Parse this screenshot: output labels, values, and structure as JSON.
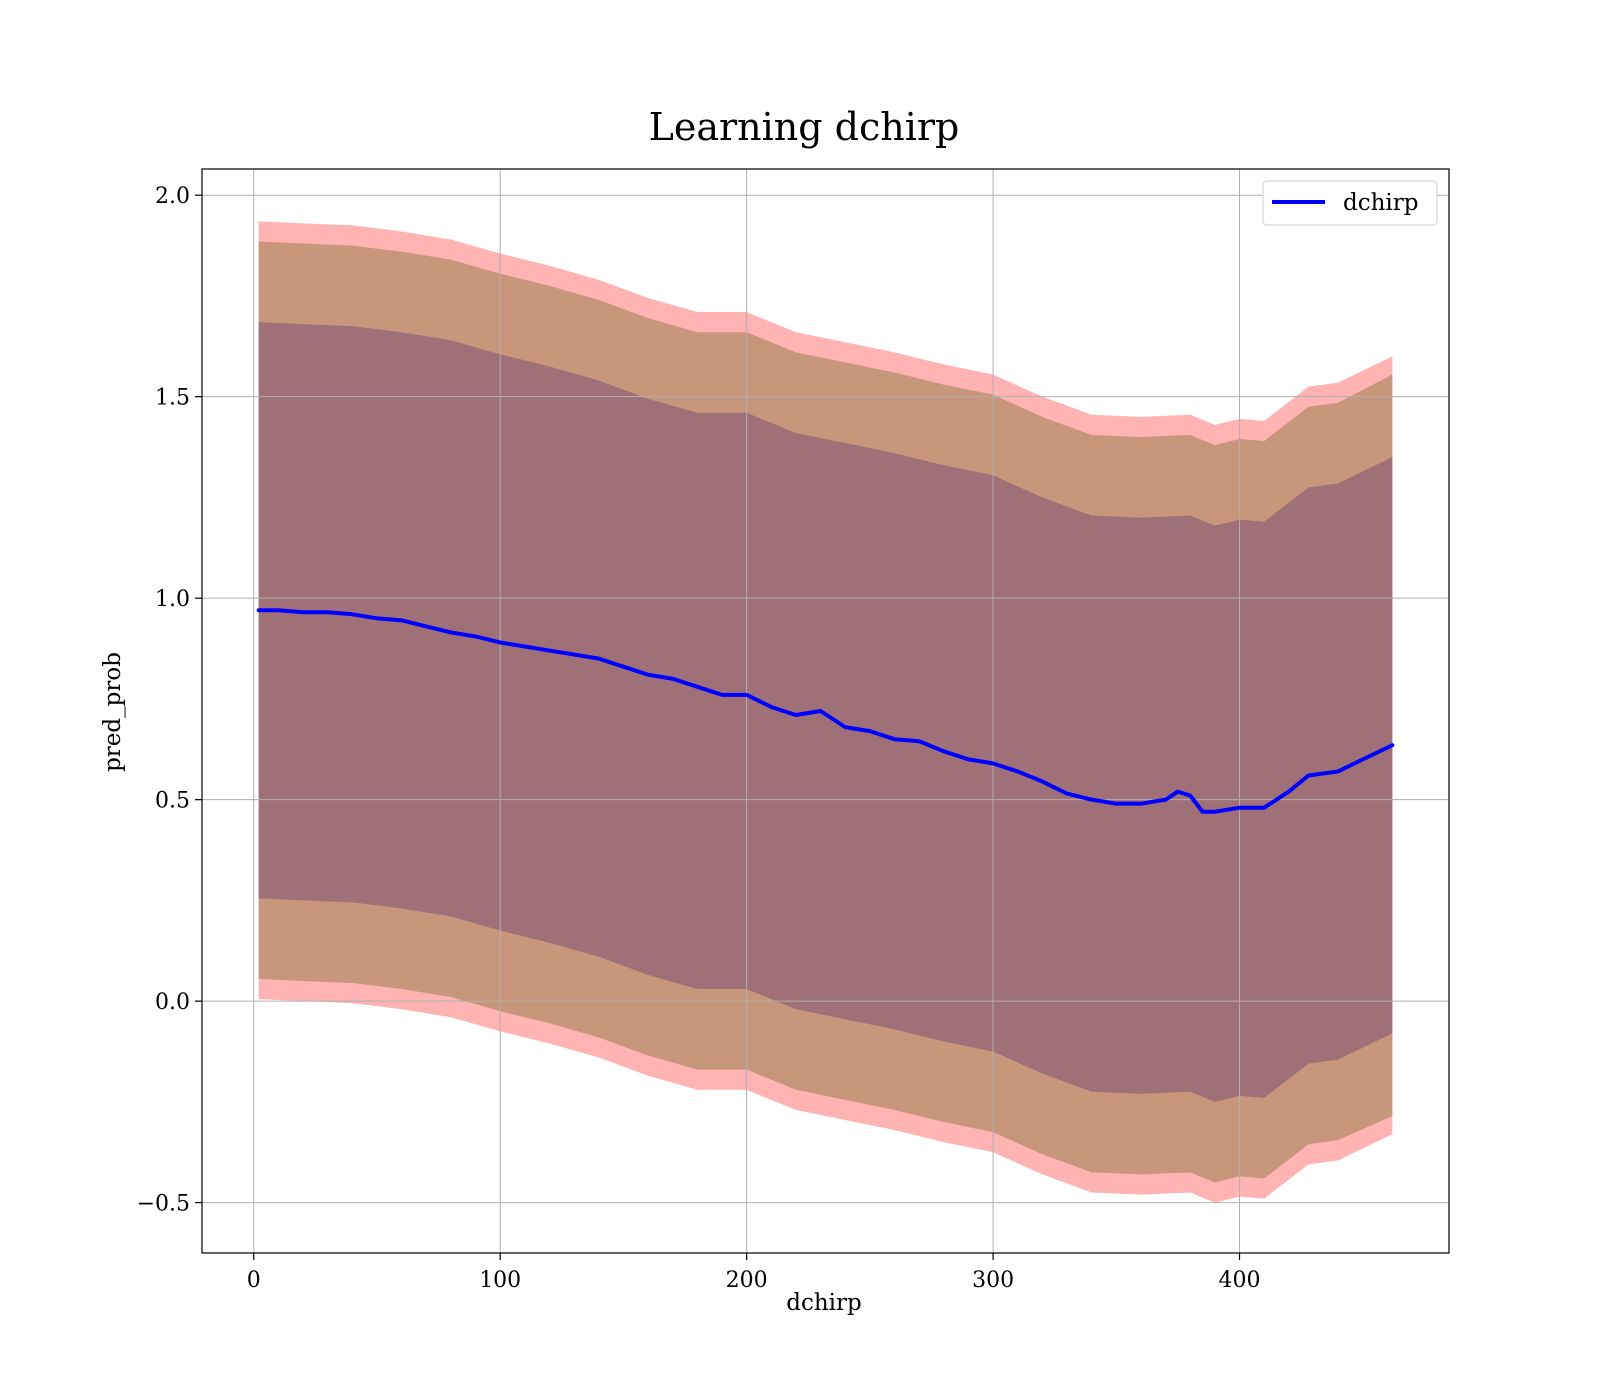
{
  "chart_data": {
    "type": "line",
    "title": "Learning dchirp",
    "xlabel": "dchirp",
    "ylabel": "pred_prob",
    "xlim": [
      -21,
      485
    ],
    "ylim": [
      -0.625,
      2.065
    ],
    "x_ticks": [
      0,
      100,
      200,
      300,
      400
    ],
    "y_ticks": [
      -0.5,
      0.0,
      0.5,
      1.0,
      1.5,
      2.0
    ],
    "x_tick_labels": [
      "0",
      "100",
      "200",
      "300",
      "400"
    ],
    "y_tick_labels": [
      "−0.5",
      "0.0",
      "0.5",
      "1.0",
      "1.5",
      "2.0"
    ],
    "grid": true,
    "legend": {
      "position": "top-right",
      "entries": [
        {
          "label": "dchirp",
          "color": "#0000ff"
        }
      ]
    },
    "series": [
      {
        "name": "dchirp",
        "color": "#0000ff",
        "x": [
          2,
          10,
          20,
          30,
          40,
          50,
          60,
          70,
          80,
          90,
          100,
          110,
          120,
          130,
          140,
          150,
          155,
          160,
          170,
          180,
          190,
          200,
          210,
          220,
          230,
          240,
          250,
          260,
          270,
          280,
          290,
          300,
          310,
          320,
          330,
          340,
          350,
          360,
          370,
          375,
          380,
          385,
          390,
          400,
          410,
          420,
          428,
          440,
          450,
          462
        ],
        "y": [
          0.97,
          0.97,
          0.965,
          0.965,
          0.96,
          0.95,
          0.945,
          0.93,
          0.915,
          0.905,
          0.89,
          0.88,
          0.87,
          0.86,
          0.85,
          0.83,
          0.82,
          0.81,
          0.8,
          0.78,
          0.76,
          0.76,
          0.73,
          0.71,
          0.72,
          0.68,
          0.67,
          0.65,
          0.645,
          0.62,
          0.6,
          0.59,
          0.57,
          0.545,
          0.515,
          0.5,
          0.49,
          0.49,
          0.5,
          0.52,
          0.51,
          0.47,
          0.47,
          0.48,
          0.48,
          0.52,
          0.56,
          0.57,
          0.6,
          0.635
        ]
      }
    ],
    "bands": [
      {
        "color": "#ff9a9a",
        "opacity": 0.75,
        "x": [
          2,
          20,
          40,
          60,
          80,
          100,
          120,
          140,
          160,
          180,
          200,
          220,
          240,
          260,
          280,
          300,
          320,
          340,
          360,
          380,
          390,
          400,
          410,
          428,
          440,
          462
        ],
        "upper": [
          1.935,
          1.93,
          1.925,
          1.91,
          1.89,
          1.855,
          1.825,
          1.79,
          1.745,
          1.71,
          1.71,
          1.66,
          1.635,
          1.61,
          1.58,
          1.555,
          1.5,
          1.455,
          1.45,
          1.455,
          1.43,
          1.445,
          1.44,
          1.525,
          1.535,
          1.6
        ],
        "lower": [
          0.005,
          0.0,
          -0.005,
          -0.02,
          -0.04,
          -0.075,
          -0.105,
          -0.14,
          -0.185,
          -0.22,
          -0.22,
          -0.27,
          -0.295,
          -0.32,
          -0.35,
          -0.375,
          -0.43,
          -0.475,
          -0.48,
          -0.475,
          -0.5,
          -0.485,
          -0.49,
          -0.405,
          -0.395,
          -0.33
        ]
      },
      {
        "color": "#c8977b",
        "opacity": 1,
        "x": [
          2,
          20,
          40,
          60,
          80,
          100,
          120,
          140,
          160,
          180,
          200,
          220,
          240,
          260,
          280,
          300,
          320,
          340,
          360,
          380,
          390,
          400,
          410,
          428,
          440,
          462
        ],
        "upper": [
          1.885,
          1.88,
          1.875,
          1.86,
          1.84,
          1.805,
          1.775,
          1.74,
          1.695,
          1.66,
          1.66,
          1.61,
          1.585,
          1.56,
          1.53,
          1.505,
          1.45,
          1.405,
          1.4,
          1.405,
          1.38,
          1.395,
          1.39,
          1.475,
          1.485,
          1.555
        ],
        "lower": [
          0.055,
          0.05,
          0.045,
          0.03,
          0.01,
          -0.025,
          -0.055,
          -0.09,
          -0.135,
          -0.17,
          -0.17,
          -0.22,
          -0.245,
          -0.27,
          -0.3,
          -0.325,
          -0.38,
          -0.425,
          -0.43,
          -0.425,
          -0.45,
          -0.435,
          -0.44,
          -0.355,
          -0.345,
          -0.285
        ]
      },
      {
        "color": "#a07078",
        "opacity": 1,
        "x": [
          2,
          20,
          40,
          60,
          80,
          100,
          120,
          140,
          160,
          180,
          200,
          220,
          240,
          260,
          280,
          300,
          320,
          340,
          360,
          380,
          390,
          400,
          410,
          428,
          440,
          462
        ],
        "upper": [
          1.685,
          1.68,
          1.675,
          1.66,
          1.64,
          1.605,
          1.575,
          1.54,
          1.495,
          1.46,
          1.46,
          1.41,
          1.385,
          1.36,
          1.33,
          1.305,
          1.25,
          1.205,
          1.2,
          1.205,
          1.18,
          1.195,
          1.19,
          1.275,
          1.285,
          1.35
        ],
        "lower": [
          0.255,
          0.25,
          0.245,
          0.23,
          0.21,
          0.175,
          0.145,
          0.11,
          0.065,
          0.03,
          0.03,
          -0.02,
          -0.045,
          -0.07,
          -0.1,
          -0.125,
          -0.18,
          -0.225,
          -0.23,
          -0.225,
          -0.25,
          -0.235,
          -0.24,
          -0.155,
          -0.145,
          -0.08
        ]
      }
    ]
  }
}
